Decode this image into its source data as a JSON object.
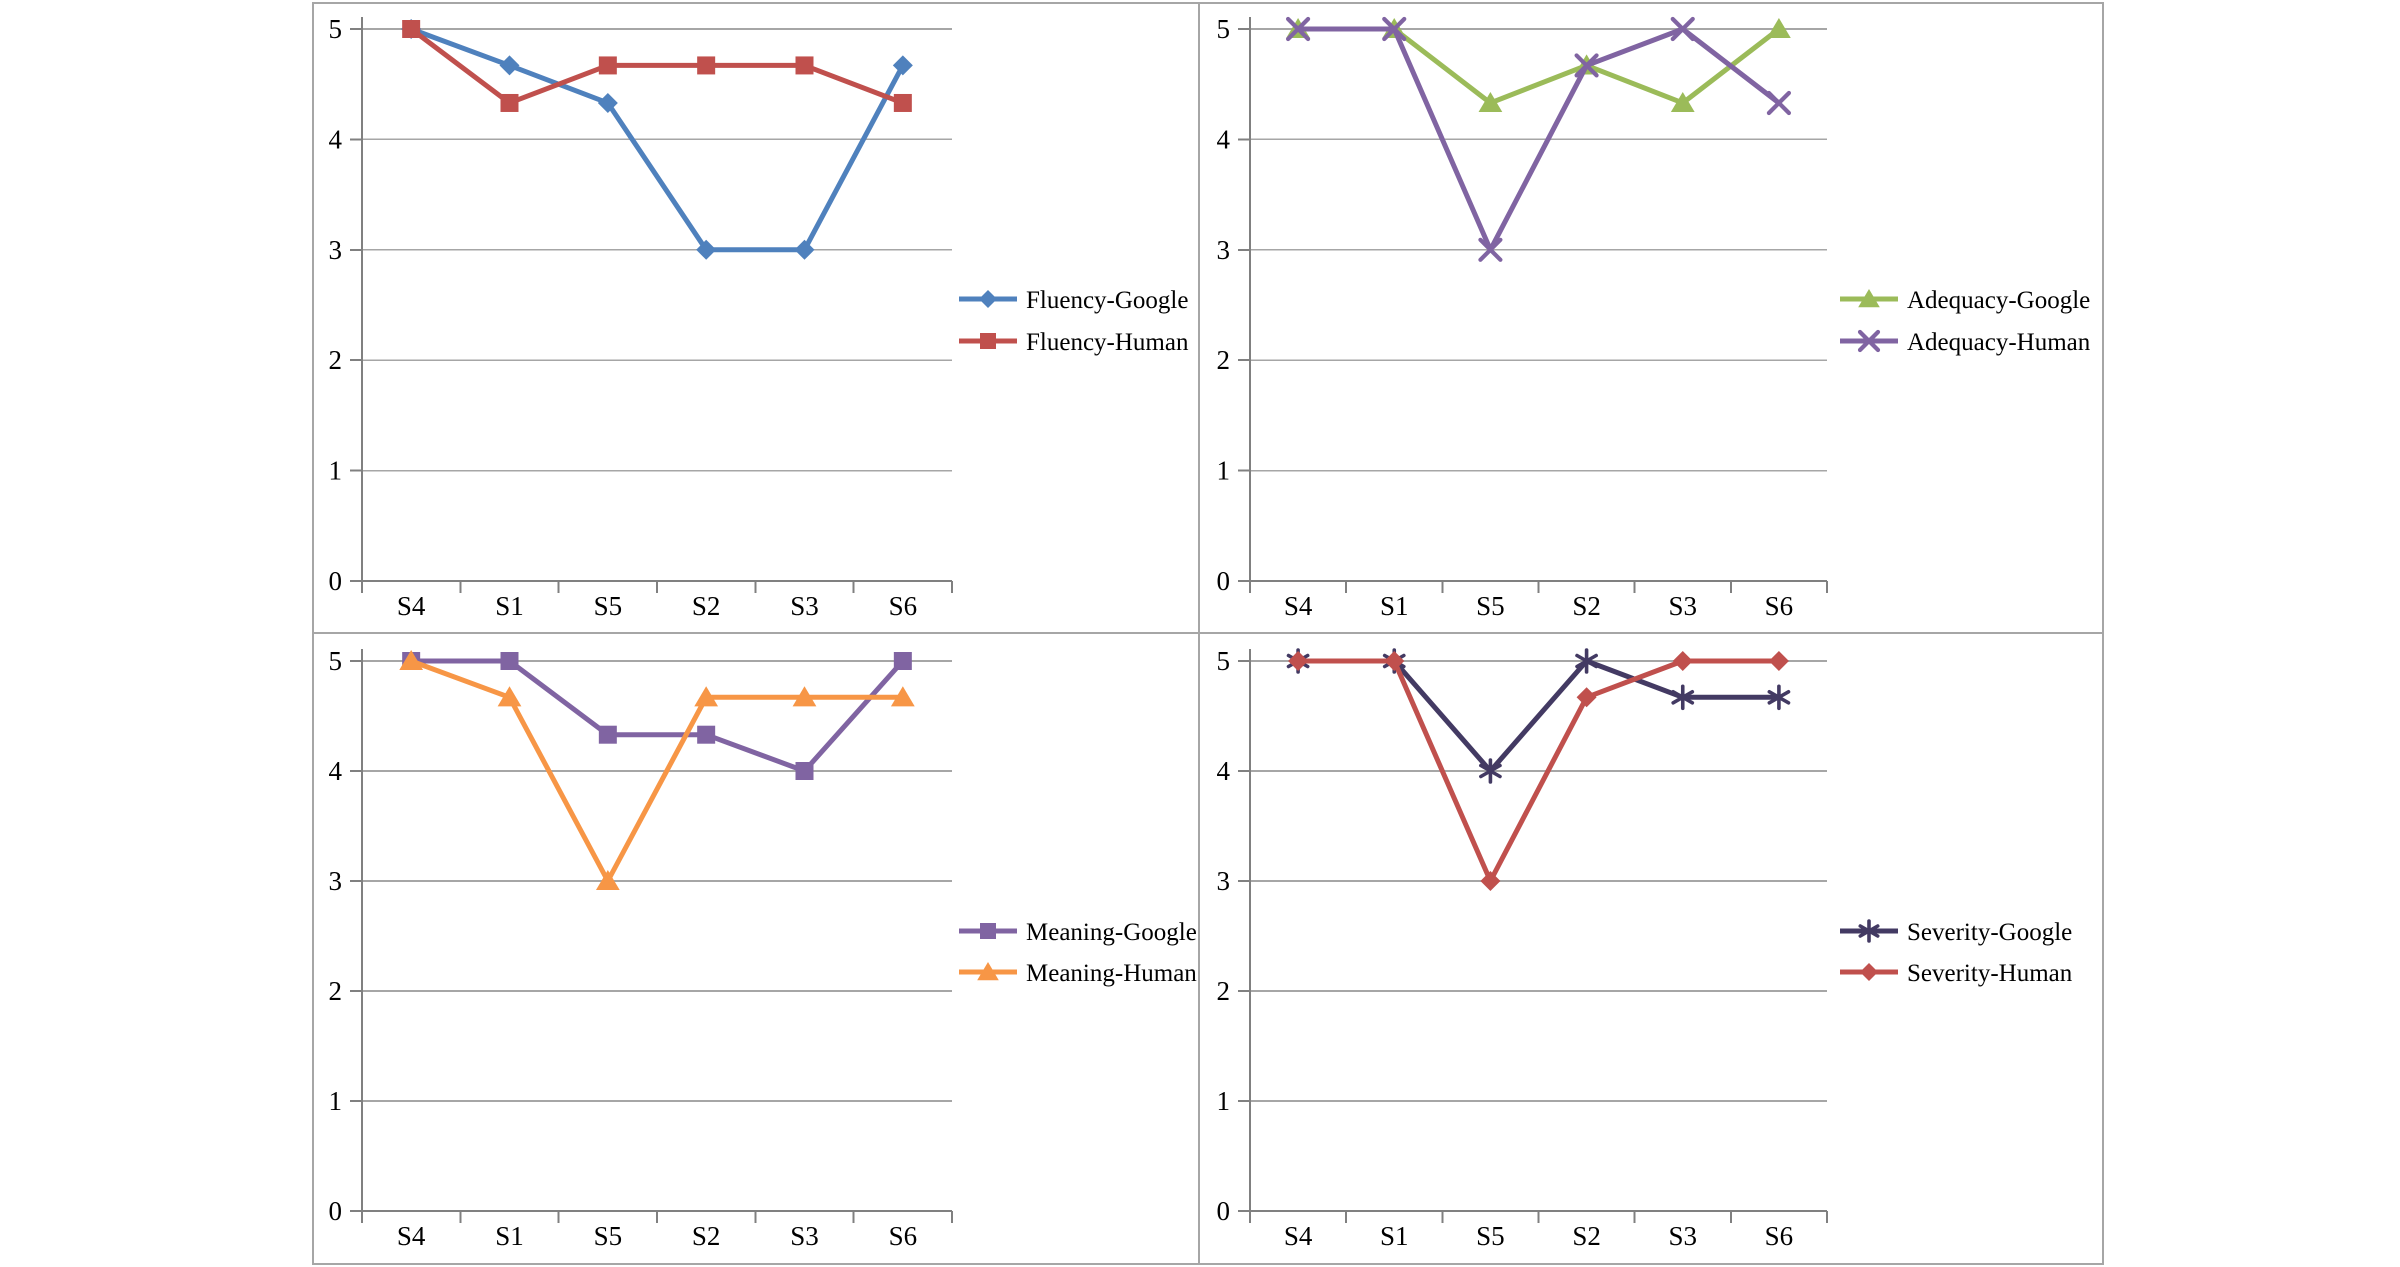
{
  "page": {
    "background": "#ffffff",
    "frame_border_color": "#a6a6a6",
    "gridline_color": "#a6a6a6",
    "axis_color": "#808080",
    "text_color": "#000000"
  },
  "chart_data": [
    {
      "id": "fluency",
      "type": "line",
      "title": "",
      "categories": [
        "S4",
        "S1",
        "S5",
        "S2",
        "S3",
        "S6"
      ],
      "ylim": [
        0,
        5
      ],
      "yticks": [
        0,
        1,
        2,
        3,
        4,
        5
      ],
      "grid": true,
      "legend_position": "right-middle",
      "series": [
        {
          "name": "Fluency-Google",
          "marker": "diamond",
          "color": "#4F81BD",
          "values": [
            5,
            4.67,
            4.33,
            3,
            3,
            4.67
          ]
        },
        {
          "name": "Fluency-Human",
          "marker": "square",
          "color": "#C0504D",
          "values": [
            5,
            4.33,
            4.67,
            4.67,
            4.67,
            4.33
          ]
        }
      ]
    },
    {
      "id": "adequacy",
      "type": "line",
      "title": "",
      "categories": [
        "S4",
        "S1",
        "S5",
        "S2",
        "S3",
        "S6"
      ],
      "ylim": [
        0,
        5
      ],
      "yticks": [
        0,
        1,
        2,
        3,
        4,
        5
      ],
      "grid": true,
      "legend_position": "right-middle",
      "series": [
        {
          "name": "Adequacy-Google",
          "marker": "triangle",
          "color": "#9BBB59",
          "values": [
            5,
            5,
            4.33,
            4.67,
            4.33,
            5
          ]
        },
        {
          "name": "Adequacy-Human",
          "marker": "x",
          "color": "#8064A2",
          "values": [
            5,
            5,
            3,
            4.67,
            5,
            4.33
          ]
        }
      ]
    },
    {
      "id": "meaning",
      "type": "line",
      "title": "",
      "categories": [
        "S4",
        "S1",
        "S5",
        "S2",
        "S3",
        "S6"
      ],
      "ylim": [
        0,
        5
      ],
      "yticks": [
        0,
        1,
        2,
        3,
        4,
        5
      ],
      "grid": true,
      "legend_position": "right-middle",
      "series": [
        {
          "name": "Meaning-Google",
          "marker": "square",
          "color": "#8064A2",
          "values": [
            5,
            5,
            4.33,
            4.33,
            4,
            5
          ]
        },
        {
          "name": "Meaning-Human",
          "marker": "triangle",
          "color": "#F79646",
          "values": [
            5,
            4.67,
            3,
            4.67,
            4.67,
            4.67
          ]
        }
      ]
    },
    {
      "id": "severity",
      "type": "line",
      "title": "",
      "categories": [
        "S4",
        "S1",
        "S5",
        "S2",
        "S3",
        "S6"
      ],
      "ylim": [
        0,
        5
      ],
      "yticks": [
        0,
        1,
        2,
        3,
        4,
        5
      ],
      "grid": true,
      "legend_position": "right-middle",
      "series": [
        {
          "name": "Severity-Google",
          "marker": "asterisk",
          "color": "#433A63",
          "values": [
            5,
            5,
            4,
            5,
            4.67,
            4.67
          ]
        },
        {
          "name": "Severity-Human",
          "marker": "diamond",
          "color": "#C0504D",
          "values": [
            5,
            5,
            3,
            4.67,
            5,
            5
          ]
        }
      ]
    }
  ]
}
